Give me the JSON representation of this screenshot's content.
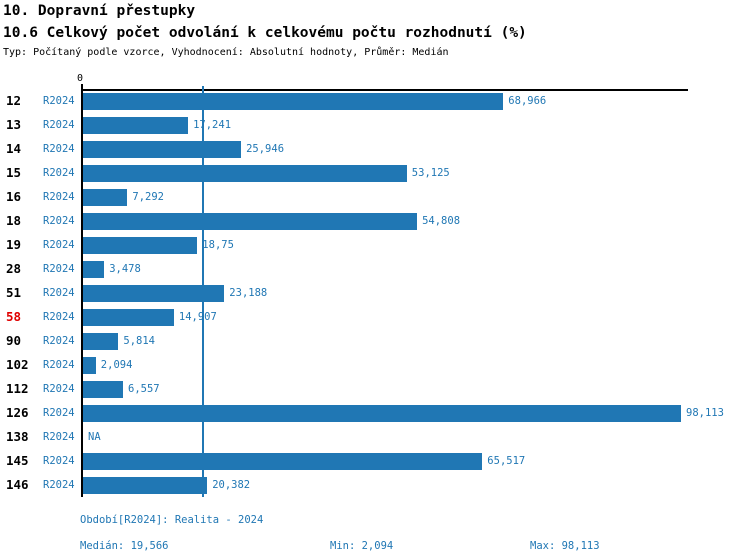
{
  "header": {
    "title1": "10. Dopravní přestupky",
    "title2": "10.6 Celkový počet odvolání k celkovému počtu rozhodnutí (%)",
    "subtitle": "Typ: Počítaný podle vzorce, Vyhodnocení: Absolutní hodnoty, Průměr: Medián"
  },
  "axis": {
    "zero_label": "0"
  },
  "chart_data": {
    "type": "bar",
    "orientation": "horizontal",
    "title": "10.6 Celkový počet odvolání k celkovému počtu rozhodnutí (%)",
    "xlabel": "",
    "ylabel": "",
    "grid": false,
    "legend": false,
    "xlim": [
      0,
      99.2
    ],
    "xmax_value": 98.113,
    "categories": [
      "12",
      "13",
      "14",
      "15",
      "16",
      "18",
      "19",
      "28",
      "51",
      "58",
      "90",
      "102",
      "112",
      "126",
      "138",
      "145",
      "146"
    ],
    "series": [
      {
        "name": "R2024",
        "values": [
          68.966,
          17.241,
          25.946,
          53.125,
          7.292,
          54.808,
          18.75,
          3.478,
          23.188,
          14.907,
          5.814,
          2.094,
          6.557,
          98.113,
          null,
          65.517,
          20.382
        ]
      }
    ],
    "value_labels": [
      "68,966",
      "17,241",
      "25,946",
      "53,125",
      "7,292",
      "54,808",
      "18,75",
      "3,478",
      "23,188",
      "14,907",
      "5,814",
      "2,094",
      "6,557",
      "98,113",
      "NA",
      "65,517",
      "20,382"
    ],
    "highlighted_category": "58",
    "median_value": 19.566
  },
  "colors": {
    "bar": "#2077b4",
    "blue_text": "#2077b4",
    "highlight_red": "#e00000",
    "axis_black": "#000000"
  },
  "footer": {
    "period": "Období[R2024]: Realita - 2024",
    "median": "Medián: 19,566",
    "min": "Min: 2,094",
    "max": "Max: 98,113"
  }
}
